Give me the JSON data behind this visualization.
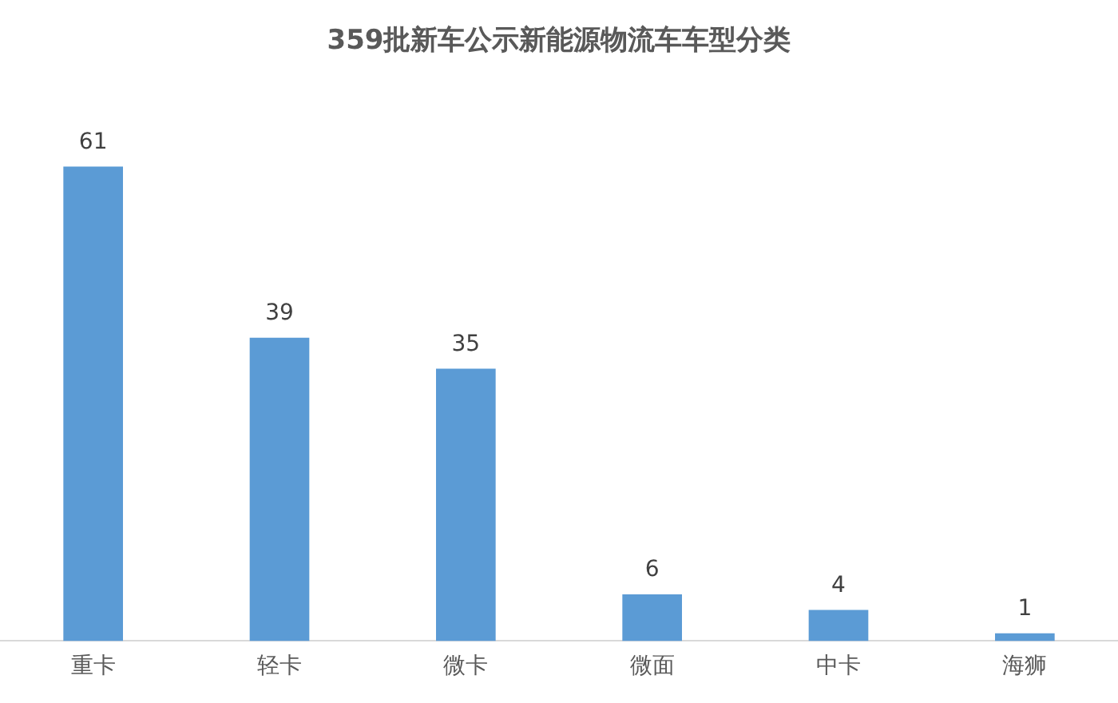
{
  "chart_data": {
    "type": "bar",
    "title": "359批新车公示新能源物流车车型分类",
    "categories": [
      "重卡",
      "轻卡",
      "微卡",
      "微面",
      "中卡",
      "海狮"
    ],
    "values": [
      61,
      39,
      35,
      6,
      4,
      1
    ],
    "color": "#5b9bd5",
    "data_labels": true
  }
}
